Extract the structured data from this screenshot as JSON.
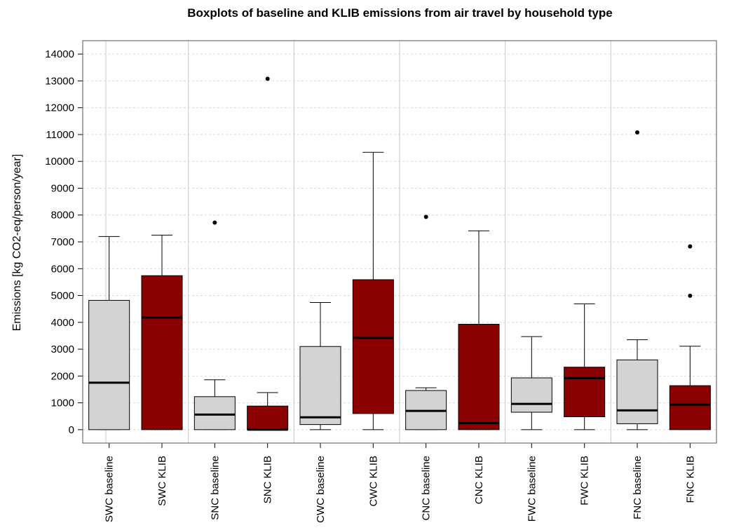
{
  "chart_data": {
    "type": "boxplot",
    "title": "Boxplots of baseline and KLIB emissions from air travel by household type",
    "xlabel": "",
    "ylabel": "Emissions [kg CO2-eq/person/year]",
    "ylim": [
      -500,
      14500
    ],
    "yticks": [
      0,
      1000,
      2000,
      3000,
      4000,
      5000,
      6000,
      7000,
      8000,
      9000,
      10000,
      11000,
      12000,
      13000,
      14000
    ],
    "grid": "horizontal dashed",
    "groups": [
      "SWC",
      "SNC",
      "CWC",
      "CNC",
      "FWC",
      "FNC"
    ],
    "series": [
      {
        "name": "baseline",
        "color": "#d3d3d3"
      },
      {
        "name": "KLIB",
        "color": "#8b0000"
      }
    ],
    "boxes": [
      {
        "label": "SWC baseline",
        "series": "baseline",
        "min": 0,
        "q1": 0,
        "median": 1750,
        "q3": 4820,
        "max": 7200,
        "outliers": []
      },
      {
        "label": "SWC KLIB",
        "series": "KLIB",
        "min": 0,
        "q1": 0,
        "median": 4180,
        "q3": 5740,
        "max": 7250,
        "outliers": []
      },
      {
        "label": "SNC baseline",
        "series": "baseline",
        "min": 0,
        "q1": 0,
        "median": 560,
        "q3": 1230,
        "max": 1860,
        "outliers": [
          7720
        ]
      },
      {
        "label": "SNC KLIB",
        "series": "KLIB",
        "min": 0,
        "q1": 0,
        "median": 0,
        "q3": 880,
        "max": 1380,
        "outliers": [
          13080
        ]
      },
      {
        "label": "CWC baseline",
        "series": "baseline",
        "min": 0,
        "q1": 190,
        "median": 460,
        "q3": 3100,
        "max": 4740,
        "outliers": []
      },
      {
        "label": "CWC KLIB",
        "series": "KLIB",
        "min": 0,
        "q1": 600,
        "median": 3420,
        "q3": 5590,
        "max": 10340,
        "outliers": []
      },
      {
        "label": "CNC baseline",
        "series": "baseline",
        "min": 0,
        "q1": 0,
        "median": 700,
        "q3": 1460,
        "max": 1560,
        "outliers": [
          7930
        ]
      },
      {
        "label": "CNC KLIB",
        "series": "KLIB",
        "min": 0,
        "q1": 0,
        "median": 240,
        "q3": 3930,
        "max": 7410,
        "outliers": []
      },
      {
        "label": "FWC baseline",
        "series": "baseline",
        "min": 0,
        "q1": 650,
        "median": 960,
        "q3": 1930,
        "max": 3470,
        "outliers": []
      },
      {
        "label": "FWC KLIB",
        "series": "KLIB",
        "min": 0,
        "q1": 480,
        "median": 1920,
        "q3": 2330,
        "max": 4690,
        "outliers": []
      },
      {
        "label": "FNC baseline",
        "series": "baseline",
        "min": 0,
        "q1": 220,
        "median": 720,
        "q3": 2600,
        "max": 3350,
        "outliers": [
          11080
        ]
      },
      {
        "label": "FNC KLIB",
        "series": "KLIB",
        "min": 0,
        "q1": 0,
        "median": 930,
        "q3": 1640,
        "max": 3110,
        "outliers": [
          4990,
          6830
        ]
      }
    ]
  }
}
